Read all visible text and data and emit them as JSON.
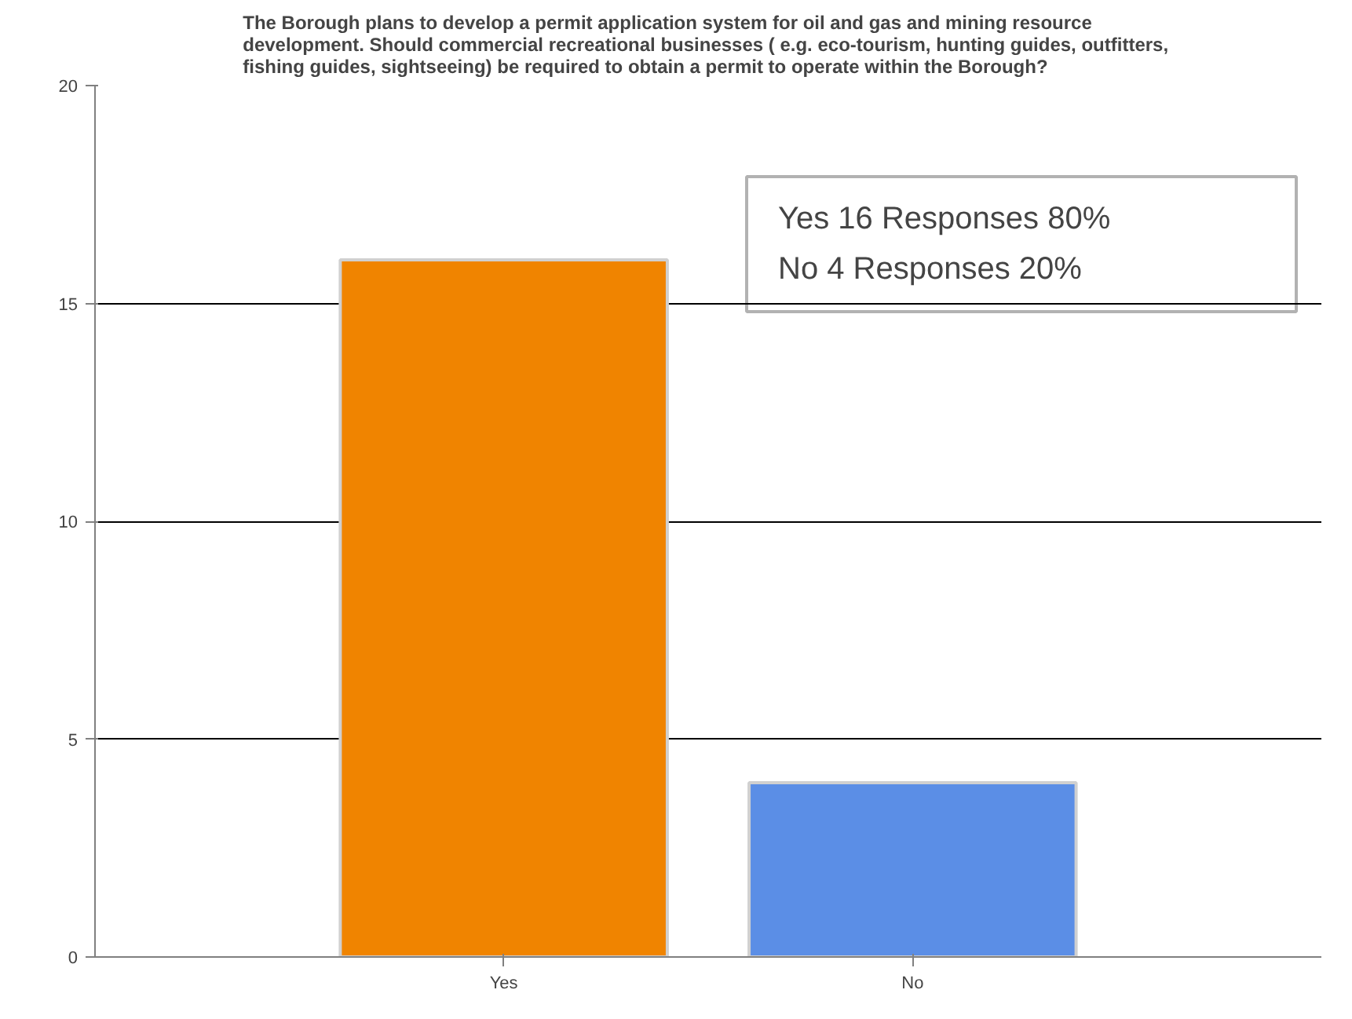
{
  "chart_data": {
    "type": "bar",
    "title": "The Borough plans to develop a permit application system for oil and gas and mining resource\ndevelopment.  Should commercial recreational businesses ( e.g. eco-tourism, hunting guides, outfitters,\nfishing guides, sightseeing) be required to obtain a permit to operate within the Borough?",
    "categories": [
      "Yes",
      "No"
    ],
    "values": [
      16,
      4
    ],
    "colors": [
      "#f08400",
      "#5b8ee6"
    ],
    "ylim": [
      0,
      20
    ],
    "yticks": [
      0,
      5,
      10,
      15,
      20
    ],
    "grid": "y",
    "annotations": [
      "Yes     16  Responses    80%",
      "No        4  Responses    20%"
    ]
  }
}
